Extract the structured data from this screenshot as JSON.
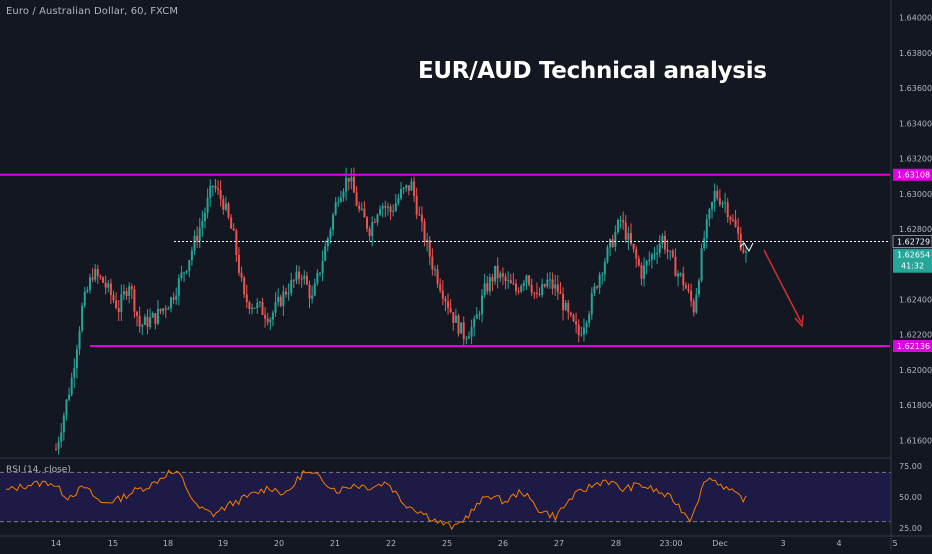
{
  "header": {
    "symbol_label": "Euro / Australian Dollar, 60, FXCM",
    "headline": "EUR/AUD Technical analysis"
  },
  "colors": {
    "background": "#131722",
    "up_candle": "#26a69a",
    "down_candle": "#ef5350",
    "level_line": "#e000e0",
    "current_price_bg": "#26a69a",
    "rsi_line": "#f57c00",
    "rsi_band": "#1f1b4a",
    "arrow": "#d32f2f"
  },
  "chart_data": [
    {
      "type": "candlestick",
      "title": "Euro / Australian Dollar, 60, FXCM",
      "price_axis": {
        "ylim": [
          1.615,
          1.641
        ],
        "ticks": [
          "1.64000",
          "1.63800",
          "1.63600",
          "1.63400",
          "1.63200",
          "1.63000",
          "1.62800",
          "1.62400",
          "1.62200",
          "1.62000",
          "1.61800",
          "1.61600"
        ]
      },
      "time_axis": {
        "ticks": [
          "14",
          "15",
          "18",
          "19",
          "20",
          "21",
          "22",
          "25",
          "26",
          "27",
          "28",
          "23:00",
          "Dec",
          "3",
          "4",
          "5"
        ]
      },
      "levels": [
        {
          "name": "resistance",
          "value": 1.63108,
          "label": "1.63108",
          "color": "#e000e0"
        },
        {
          "name": "support",
          "value": 1.62136,
          "label": "1.62136",
          "color": "#e000e0"
        },
        {
          "name": "dotted-line",
          "value": 1.62729,
          "label": "1.62729",
          "color": "#ffffff"
        }
      ],
      "current_price": {
        "value": 1.62654,
        "label": "1.62654",
        "countdown": "41:32"
      },
      "path_anchors": [
        [
          0,
          1.6155
        ],
        [
          6,
          1.6195
        ],
        [
          10,
          1.6235
        ],
        [
          14,
          1.6255
        ],
        [
          18,
          1.625
        ],
        [
          24,
          1.6235
        ],
        [
          28,
          1.625
        ],
        [
          32,
          1.6225
        ],
        [
          38,
          1.623
        ],
        [
          44,
          1.624
        ],
        [
          50,
          1.626
        ],
        [
          56,
          1.6285
        ],
        [
          60,
          1.6305
        ],
        [
          64,
          1.6295
        ],
        [
          68,
          1.6275
        ],
        [
          72,
          1.624
        ],
        [
          78,
          1.6235
        ],
        [
          82,
          1.623
        ],
        [
          88,
          1.6245
        ],
        [
          94,
          1.6255
        ],
        [
          98,
          1.624
        ],
        [
          104,
          1.6275
        ],
        [
          108,
          1.63
        ],
        [
          112,
          1.631
        ],
        [
          116,
          1.629
        ],
        [
          120,
          1.628
        ],
        [
          124,
          1.6295
        ],
        [
          128,
          1.629
        ],
        [
          132,
          1.63
        ],
        [
          136,
          1.6305
        ],
        [
          140,
          1.628
        ],
        [
          144,
          1.626
        ],
        [
          148,
          1.6245
        ],
        [
          152,
          1.623
        ],
        [
          156,
          1.622
        ],
        [
          160,
          1.6225
        ],
        [
          164,
          1.6245
        ],
        [
          168,
          1.6255
        ],
        [
          172,
          1.625
        ],
        [
          176,
          1.6245
        ],
        [
          180,
          1.6255
        ],
        [
          184,
          1.624
        ],
        [
          188,
          1.625
        ],
        [
          192,
          1.6245
        ],
        [
          196,
          1.623
        ],
        [
          200,
          1.622
        ],
        [
          204,
          1.6235
        ],
        [
          208,
          1.6255
        ],
        [
          212,
          1.627
        ],
        [
          216,
          1.6285
        ],
        [
          220,
          1.627
        ],
        [
          224,
          1.6255
        ],
        [
          228,
          1.6265
        ],
        [
          232,
          1.6275
        ],
        [
          236,
          1.626
        ],
        [
          240,
          1.625
        ],
        [
          244,
          1.6235
        ],
        [
          248,
          1.6275
        ],
        [
          252,
          1.63
        ],
        [
          256,
          1.6295
        ],
        [
          260,
          1.628
        ],
        [
          264,
          1.6265
        ]
      ],
      "candle_count": 265
    },
    {
      "type": "line",
      "title": "RSI (14, close)",
      "y_ticks": [
        "75.00",
        "50.00",
        "25.00"
      ],
      "bands": [
        30,
        70
      ],
      "ylim": [
        20,
        80
      ],
      "path_anchors": [
        [
          0,
          55
        ],
        [
          8,
          60
        ],
        [
          16,
          62
        ],
        [
          22,
          50
        ],
        [
          28,
          58
        ],
        [
          34,
          45
        ],
        [
          40,
          48
        ],
        [
          46,
          55
        ],
        [
          52,
          60
        ],
        [
          58,
          70
        ],
        [
          62,
          68
        ],
        [
          68,
          42
        ],
        [
          74,
          36
        ],
        [
          80,
          44
        ],
        [
          88,
          52
        ],
        [
          94,
          58
        ],
        [
          100,
          52
        ],
        [
          106,
          70
        ],
        [
          112,
          66
        ],
        [
          118,
          55
        ],
        [
          124,
          60
        ],
        [
          130,
          58
        ],
        [
          136,
          62
        ],
        [
          142,
          45
        ],
        [
          148,
          38
        ],
        [
          154,
          30
        ],
        [
          160,
          25
        ],
        [
          166,
          38
        ],
        [
          172,
          52
        ],
        [
          178,
          46
        ],
        [
          184,
          55
        ],
        [
          190,
          40
        ],
        [
          196,
          34
        ],
        [
          202,
          50
        ],
        [
          208,
          58
        ],
        [
          214,
          64
        ],
        [
          220,
          56
        ],
        [
          226,
          60
        ],
        [
          232,
          55
        ],
        [
          238,
          48
        ],
        [
          244,
          32
        ],
        [
          250,
          66
        ],
        [
          254,
          62
        ],
        [
          260,
          52
        ],
        [
          264,
          48
        ]
      ]
    }
  ]
}
